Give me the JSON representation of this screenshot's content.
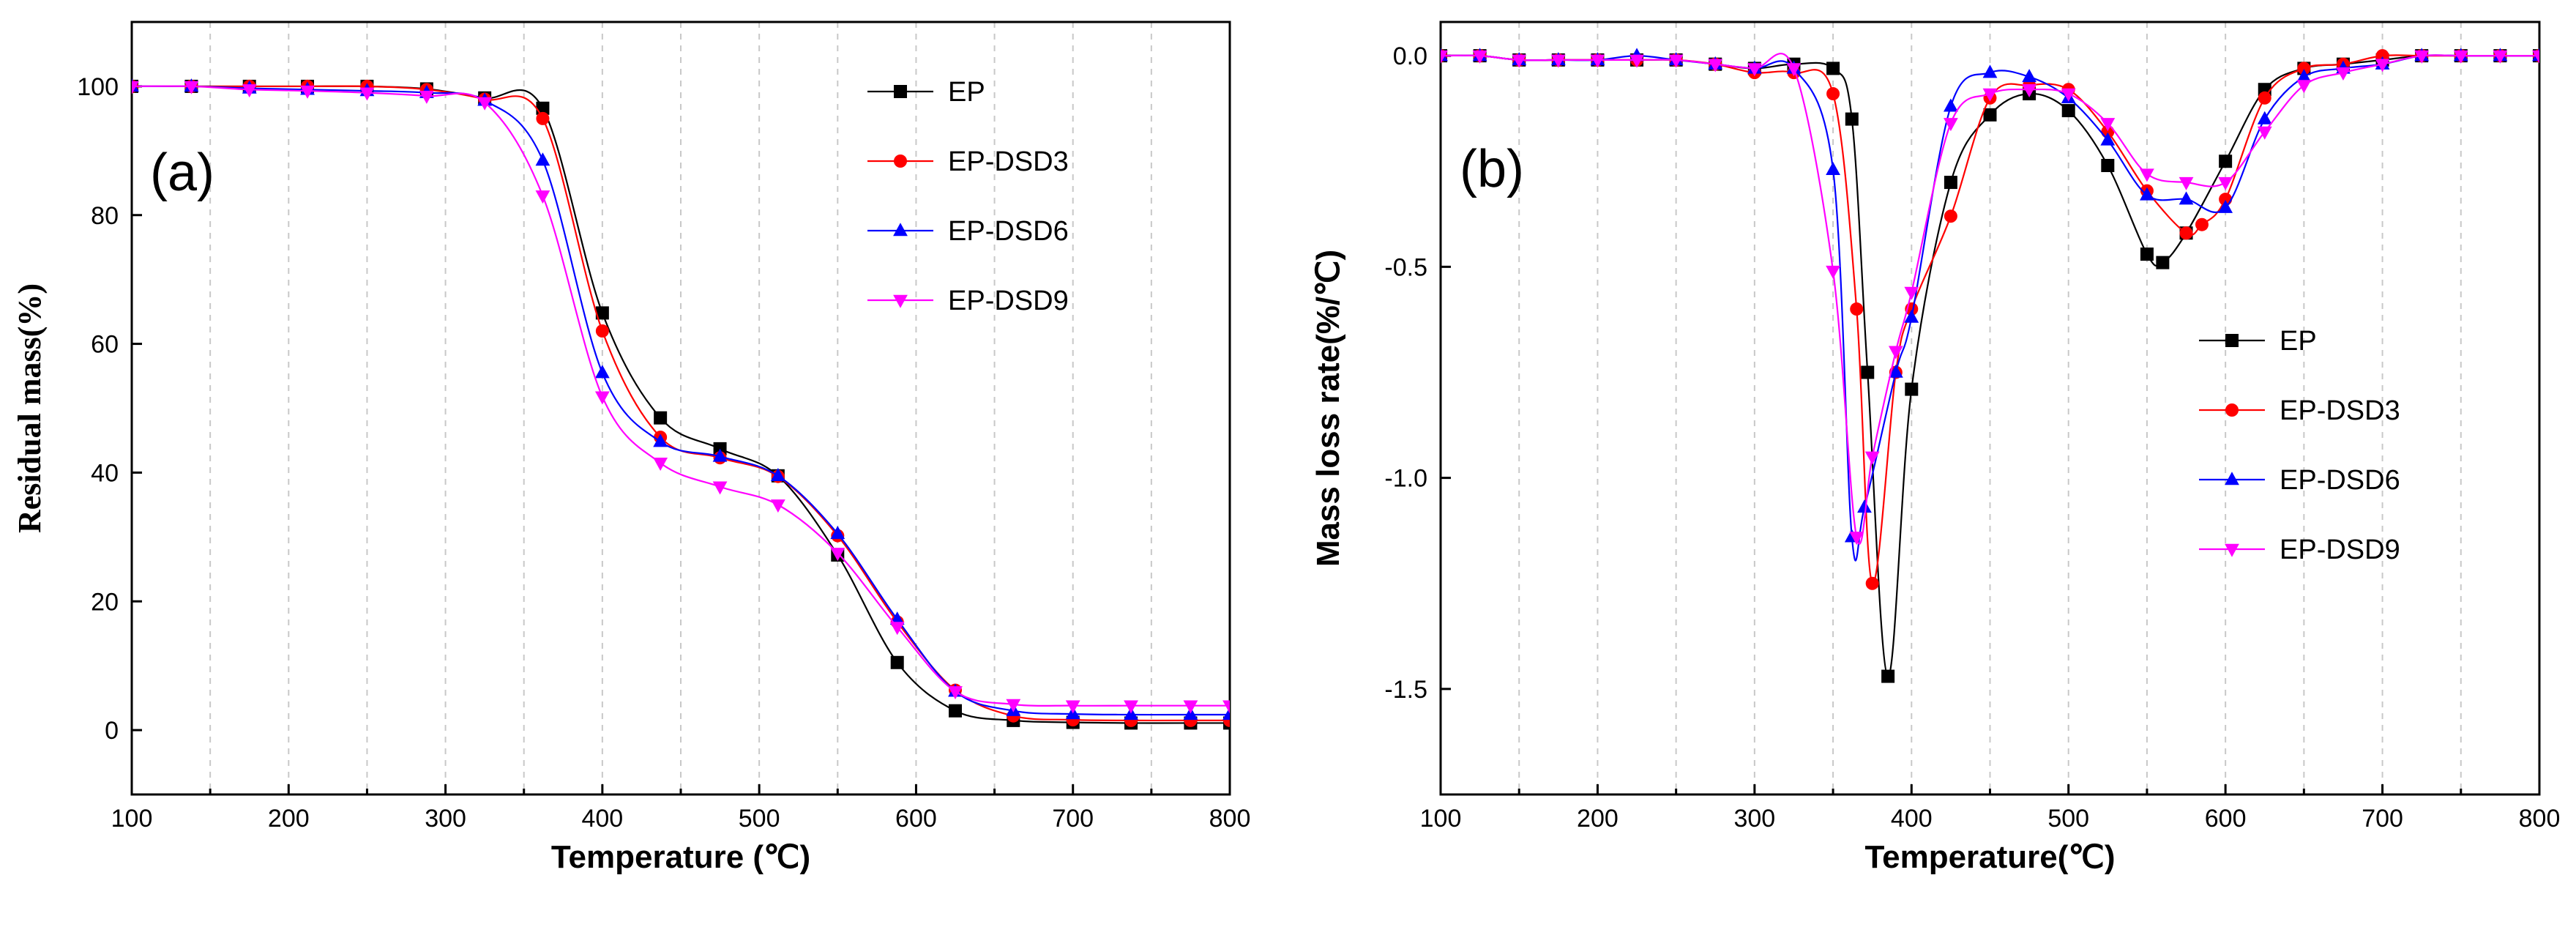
{
  "chart_data": [
    {
      "type": "line",
      "panel_label": "(a)",
      "xlabel": "Temperature (℃)",
      "ylabel": "Residual mass(%)",
      "xlim": [
        100,
        800
      ],
      "ylim": [
        -10,
        110
      ],
      "xticks": [
        100,
        200,
        300,
        400,
        500,
        600,
        700,
        800
      ],
      "yticks": [
        0,
        20,
        40,
        60,
        80,
        100
      ],
      "grid": "vertical dashed",
      "legend_position": "top-right",
      "series": [
        {
          "name": "EP",
          "color": "#000000",
          "marker": "square",
          "x": [
            100,
            138,
            175,
            212,
            250,
            288,
            325,
            362,
            400,
            437,
            475,
            512,
            550,
            588,
            625,
            662,
            700,
            737,
            775,
            800
          ],
          "y": [
            100,
            100,
            100,
            100,
            100,
            99.6,
            98.2,
            96.6,
            64.8,
            48.5,
            43.7,
            39.5,
            27.2,
            10.5,
            3.0,
            1.5,
            1.2,
            1.1,
            1.1,
            1.1
          ]
        },
        {
          "name": "EP-DSD3",
          "color": "#ff0000",
          "marker": "circle",
          "x": [
            100,
            138,
            175,
            212,
            250,
            288,
            325,
            362,
            400,
            437,
            475,
            512,
            550,
            588,
            625,
            662,
            700,
            737,
            775,
            800
          ],
          "y": [
            100,
            100,
            100,
            100,
            100,
            99.5,
            98.0,
            95.0,
            62.0,
            45.5,
            42.3,
            39.4,
            30.2,
            16.8,
            6.2,
            2.2,
            1.6,
            1.5,
            1.5,
            1.5
          ]
        },
        {
          "name": "EP-DSD6",
          "color": "#0000ff",
          "marker": "triangle-up",
          "x": [
            100,
            138,
            175,
            212,
            250,
            288,
            325,
            362,
            400,
            437,
            475,
            512,
            550,
            588,
            625,
            662,
            700,
            737,
            775,
            800
          ],
          "y": [
            100,
            100,
            99.7,
            99.5,
            99.3,
            99.0,
            97.8,
            88.5,
            55.5,
            44.8,
            42.5,
            39.5,
            30.5,
            17.2,
            6.0,
            3.0,
            2.5,
            2.4,
            2.4,
            2.4
          ]
        },
        {
          "name": "EP-DSD9",
          "color": "#ff00ff",
          "marker": "triangle-down",
          "x": [
            100,
            138,
            175,
            212,
            250,
            288,
            325,
            362,
            400,
            437,
            475,
            512,
            550,
            588,
            625,
            662,
            700,
            737,
            775,
            800
          ],
          "y": [
            100,
            100,
            99.5,
            99.3,
            99.0,
            98.5,
            97.5,
            83.0,
            51.8,
            41.5,
            37.8,
            35.0,
            27.5,
            16.0,
            6.0,
            4.0,
            3.8,
            3.8,
            3.8,
            3.8
          ]
        }
      ]
    },
    {
      "type": "line",
      "panel_label": "(b)",
      "xlabel": "Temperature(℃)",
      "ylabel": "Mass loss rate(%/℃)",
      "xlim": [
        100,
        800
      ],
      "ylim": [
        -1.75,
        0.08
      ],
      "xticks": [
        100,
        200,
        300,
        400,
        500,
        600,
        700,
        800
      ],
      "yticks": [
        0.0,
        -0.5,
        -1.0,
        -1.5
      ],
      "ytick_labels": [
        "0.0",
        "-0.5",
        "-1.0",
        "-1.5"
      ],
      "grid": "vertical dashed",
      "legend_position": "center-right",
      "series": [
        {
          "name": "EP",
          "color": "#000000",
          "marker": "square",
          "x": [
            100,
            125,
            150,
            175,
            200,
            225,
            250,
            275,
            300,
            325,
            350,
            362,
            372,
            385,
            400,
            425,
            450,
            475,
            500,
            525,
            550,
            560,
            575,
            600,
            625,
            650,
            675,
            700,
            725,
            750,
            775,
            800
          ],
          "y": [
            0,
            0,
            -0.01,
            -0.01,
            -0.01,
            -0.01,
            -0.01,
            -0.02,
            -0.03,
            -0.02,
            -0.03,
            -0.15,
            -0.75,
            -1.47,
            -0.79,
            -0.3,
            -0.14,
            -0.09,
            -0.13,
            -0.26,
            -0.47,
            -0.49,
            -0.42,
            -0.25,
            -0.08,
            -0.03,
            -0.02,
            -0.01,
            0.0,
            0.0,
            0.0,
            0.0
          ]
        },
        {
          "name": "EP-DSD3",
          "color": "#ff0000",
          "marker": "circle",
          "x": [
            100,
            125,
            150,
            175,
            200,
            225,
            250,
            275,
            300,
            325,
            350,
            365,
            375,
            390,
            400,
            425,
            450,
            475,
            500,
            525,
            550,
            575,
            585,
            600,
            625,
            650,
            675,
            700,
            725,
            750,
            775,
            800
          ],
          "y": [
            0,
            0,
            -0.01,
            -0.01,
            -0.01,
            -0.01,
            -0.01,
            -0.02,
            -0.04,
            -0.04,
            -0.09,
            -0.6,
            -1.25,
            -0.75,
            -0.6,
            -0.38,
            -0.1,
            -0.07,
            -0.08,
            -0.18,
            -0.32,
            -0.42,
            -0.4,
            -0.34,
            -0.1,
            -0.03,
            -0.02,
            0.0,
            0.0,
            0.0,
            0.0,
            0.0
          ]
        },
        {
          "name": "EP-DSD6",
          "color": "#0000ff",
          "marker": "triangle-up",
          "x": [
            100,
            125,
            150,
            175,
            200,
            225,
            250,
            275,
            300,
            325,
            350,
            362,
            370,
            390,
            400,
            425,
            450,
            475,
            500,
            525,
            550,
            575,
            600,
            625,
            650,
            675,
            700,
            725,
            750,
            775,
            800
          ],
          "y": [
            0,
            0,
            -0.01,
            -0.01,
            -0.01,
            0.0,
            -0.01,
            -0.02,
            -0.03,
            -0.03,
            -0.27,
            -1.14,
            -1.07,
            -0.75,
            -0.62,
            -0.12,
            -0.04,
            -0.05,
            -0.1,
            -0.2,
            -0.33,
            -0.34,
            -0.36,
            -0.15,
            -0.05,
            -0.03,
            -0.02,
            0.0,
            0.0,
            0.0,
            0.0
          ]
        },
        {
          "name": "EP-DSD9",
          "color": "#ff00ff",
          "marker": "triangle-down",
          "x": [
            100,
            125,
            150,
            175,
            200,
            225,
            250,
            275,
            300,
            325,
            350,
            365,
            375,
            390,
            400,
            425,
            450,
            475,
            500,
            525,
            550,
            575,
            600,
            625,
            650,
            675,
            700,
            725,
            750,
            775,
            800
          ],
          "y": [
            0,
            0,
            -0.01,
            -0.01,
            -0.01,
            -0.01,
            -0.01,
            -0.02,
            -0.03,
            -0.03,
            -0.51,
            -1.14,
            -0.95,
            -0.7,
            -0.56,
            -0.16,
            -0.09,
            -0.08,
            -0.09,
            -0.16,
            -0.28,
            -0.3,
            -0.3,
            -0.18,
            -0.07,
            -0.04,
            -0.02,
            0.0,
            0.0,
            0.0,
            0.0
          ]
        }
      ]
    }
  ]
}
